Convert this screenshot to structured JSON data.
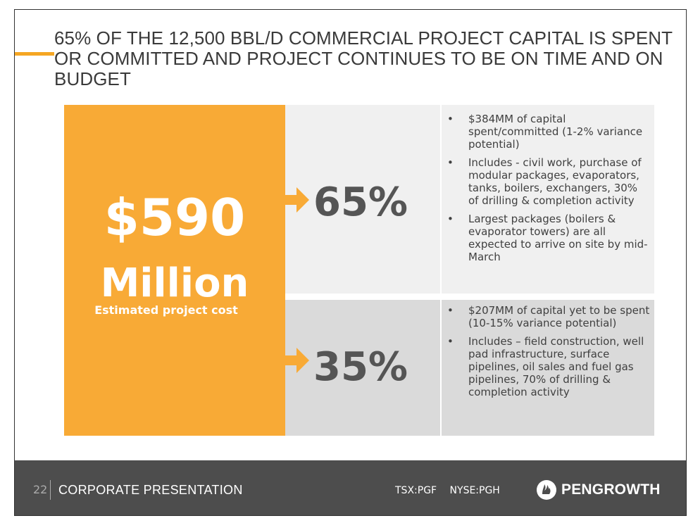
{
  "title_lines": [
    "65% OF THE 12,500 BBL/D COMMERCIAL PROJECT CAPITAL IS SPENT",
    "OR COMMITTED AND PROJECT CONTINUES TO BE ON TIME AND ON",
    "BUDGET"
  ],
  "cost": {
    "amount": "$590",
    "unit": "Million",
    "caption": "Estimated project cost"
  },
  "spent": {
    "percent": "65%",
    "bullets": [
      "$384MM of capital spent/committed (1-2% variance potential)",
      "Includes -  civil work, purchase of  modular packages, evaporators, tanks, boilers, exchangers, 30% of drilling & completion activity",
      "Largest packages (boilers & evaporator towers) are all expected to arrive on site by mid-March"
    ]
  },
  "remaining": {
    "percent": "35%",
    "bullets": [
      "$207MM of capital yet to be spent (10-15% variance potential)",
      "Includes – field construction, well pad infrastructure, surface pipelines, oil sales and fuel gas pipelines, 70% of drilling & completion activity"
    ]
  },
  "footer": {
    "page_number": "22",
    "label": "CORPORATE PRESENTATION",
    "ticker_tsx": "TSX:PGF",
    "ticker_nyse": "NYSE:PGH",
    "logo_text": "PENGROWTH"
  },
  "colors": {
    "accent": "#F5A623",
    "cost_box": "#F8AA36",
    "footer_bg": "#4d4d4d"
  },
  "icons": [
    "arrow-right-icon",
    "pengrowth-logo-icon"
  ]
}
